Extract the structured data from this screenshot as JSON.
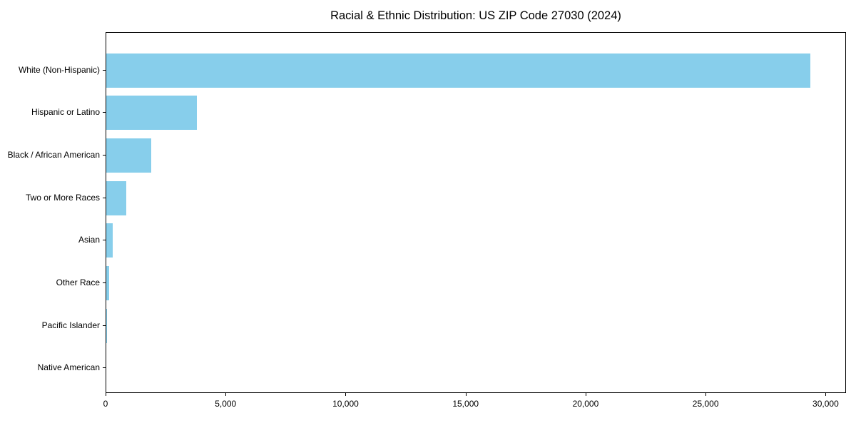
{
  "chart_data": {
    "type": "bar",
    "orientation": "horizontal",
    "title": "Racial & Ethnic Distribution: US ZIP Code 27030 (2024)",
    "categories": [
      "White (Non-Hispanic)",
      "Hispanic or Latino",
      "Black / African American",
      "Two or More Races",
      "Asian",
      "Other Race",
      "Pacific Islander",
      "Native American"
    ],
    "values": [
      29340,
      3780,
      1880,
      820,
      270,
      120,
      10,
      0
    ],
    "xlabel": "",
    "ylabel": "",
    "xlim": [
      0,
      30850
    ],
    "x_ticks": [
      0,
      5000,
      10000,
      15000,
      20000,
      25000,
      30000
    ],
    "x_tick_labels": [
      "0",
      "5,000",
      "10,000",
      "15,000",
      "20,000",
      "25,000",
      "30,000"
    ],
    "bar_color": "#87CEEB",
    "spine_color": "#000000",
    "grid": false,
    "legend_position": "none"
  }
}
